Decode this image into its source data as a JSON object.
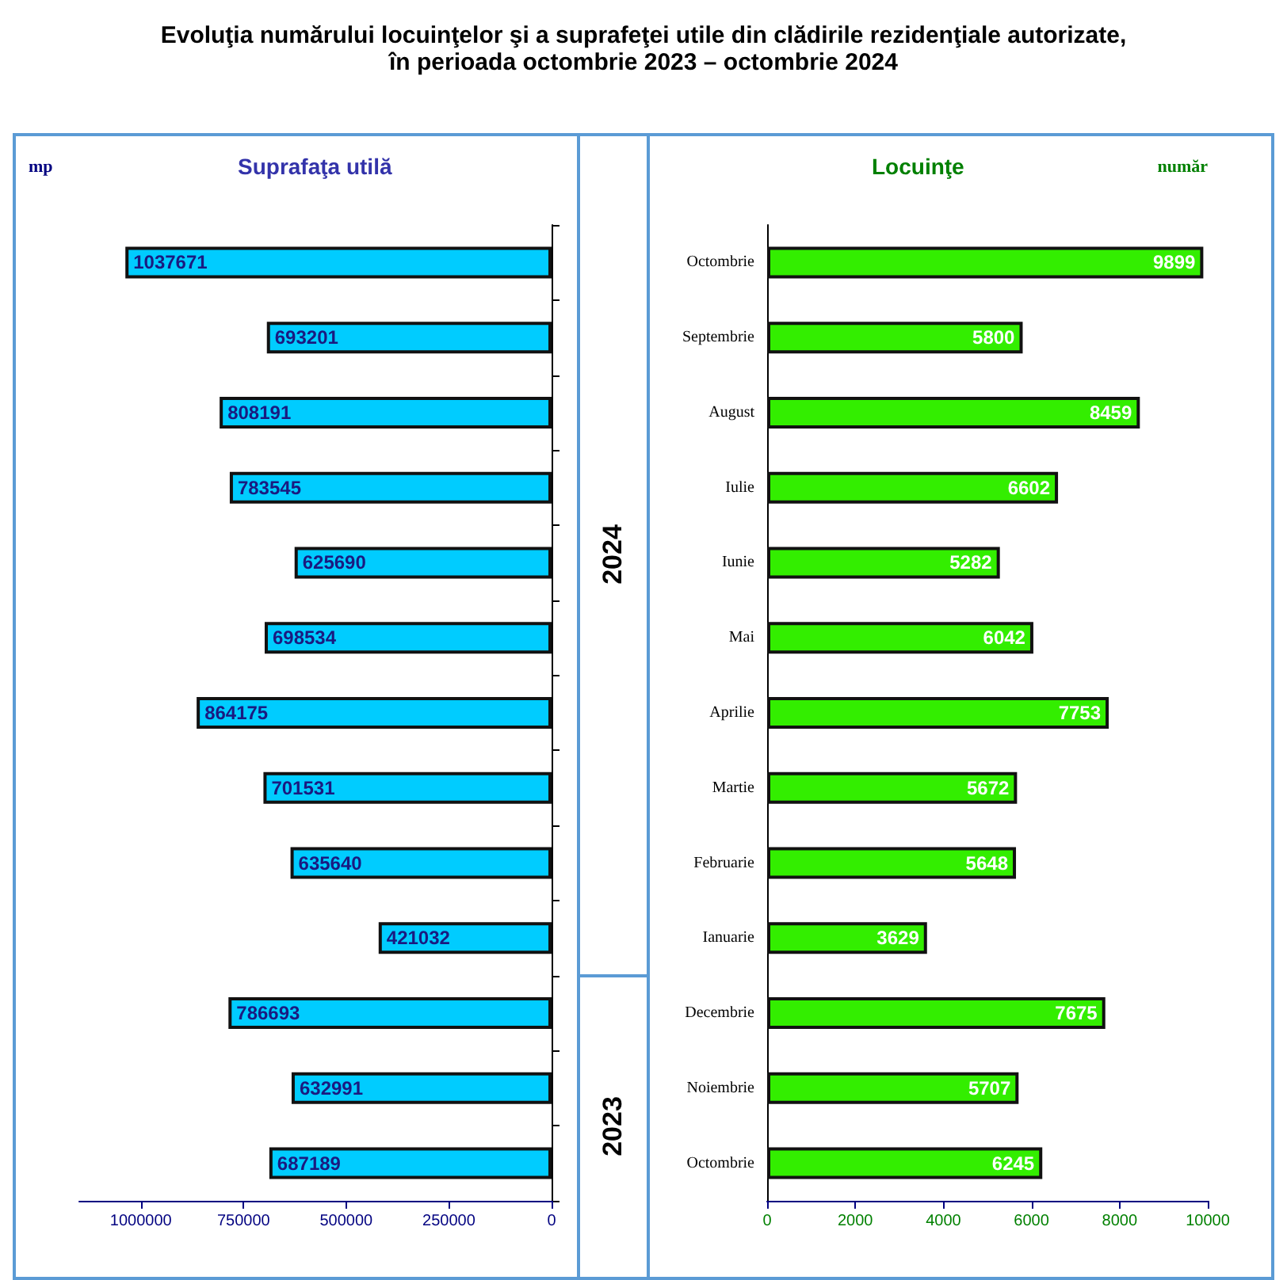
{
  "chart_data": [
    {
      "type": "bar",
      "orientation": "horizontal",
      "title": "Evoluţia numărului locuinţelor şi a suprafeţei utile din clădirile rezidenţiale autorizate,\nîn perioada octombrie 2023 – octombrie 2024",
      "subtitle": "Suprafaţa utilă",
      "xlabel": "mp",
      "categories": [
        null,
        null,
        null,
        null,
        null,
        null,
        null,
        null,
        null,
        null,
        null,
        null,
        null
      ],
      "values": [
        1037671,
        693201,
        808191,
        783545,
        625690,
        698534,
        864175,
        701531,
        635640,
        421032,
        786693,
        632991,
        687189
      ],
      "color": "#00ccff",
      "data_labels": true,
      "xlim": [
        1150000,
        0
      ],
      "xticks": [
        1000000,
        750000,
        500000,
        250000,
        0
      ],
      "grid": false,
      "annotations": [
        "2024",
        "2023"
      ]
    },
    {
      "type": "bar",
      "orientation": "horizontal",
      "title": "Locuinţe",
      "xlabel": "număr",
      "categories": [
        "Octombrie",
        "Septembrie",
        "August",
        "Iulie",
        "Iunie",
        "Mai",
        "Aprilie",
        "Martie",
        "Februarie",
        "Ianuarie",
        "Decembrie",
        "Noiembrie",
        "Octombrie"
      ],
      "values": [
        9899,
        5800,
        8459,
        6602,
        5282,
        6042,
        7753,
        5672,
        5648,
        3629,
        7675,
        5707,
        6245
      ],
      "color": "#33ee00",
      "data_labels": true,
      "xlim": [
        0,
        10000
      ],
      "xticks": [
        0,
        2000,
        4000,
        6000,
        8000,
        10000
      ],
      "grid": false
    }
  ]
}
